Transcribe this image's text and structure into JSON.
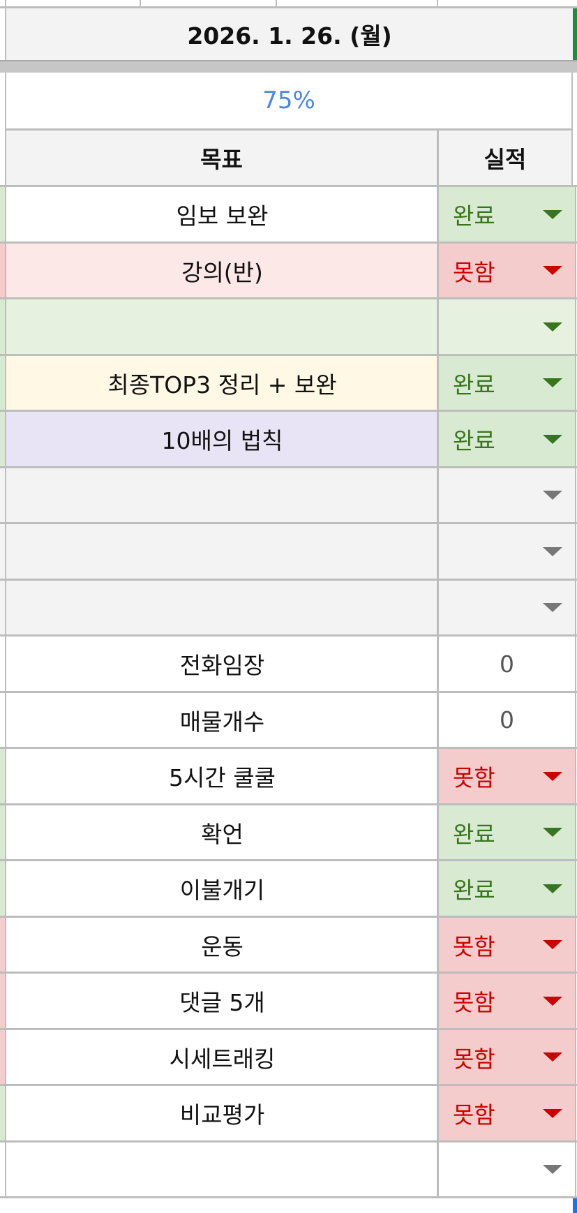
{
  "date_header": "2026. 1. 26. (월)",
  "progress_percent": "75%",
  "columns": {
    "goal": "목표",
    "result": "실적"
  },
  "colors": {
    "done_bg": "#d9ead3",
    "done_text": "#38761d",
    "fail_bg": "#f4cccc",
    "fail_text": "#cc0000",
    "progress_text": "#4a86e8"
  },
  "rows": [
    {
      "goal": "임보 보완",
      "result": "완료",
      "type": "done",
      "bg": "#ffffff",
      "strip": "#d9ead3"
    },
    {
      "goal": "강의(반)",
      "result": "못함",
      "type": "fail",
      "bg": "#fce8e6",
      "strip": "#f4cccc"
    },
    {
      "goal": "",
      "result": "",
      "type": "done-empty",
      "bg": "#e6f2df",
      "strip": "#d9ead3"
    },
    {
      "goal": "최종TOP3 정리 + 보완",
      "result": "완료",
      "type": "done",
      "bg": "#fef8e4",
      "strip": "#d9ead3"
    },
    {
      "goal": "10배의 법칙",
      "result": "완료",
      "type": "done",
      "bg": "#e8e4f6",
      "strip": "#d9ead3"
    },
    {
      "goal": "",
      "result": "",
      "type": "empty",
      "bg": "#f3f3f3",
      "strip": "#f3f3f3"
    },
    {
      "goal": "",
      "result": "",
      "type": "empty",
      "bg": "#f3f3f3",
      "strip": "#f3f3f3"
    },
    {
      "goal": "",
      "result": "",
      "type": "empty",
      "bg": "#f3f3f3",
      "strip": "#f3f3f3"
    },
    {
      "goal": "전화임장",
      "result": "0",
      "type": "number",
      "bg": "#ffffff",
      "strip": "#ffffff"
    },
    {
      "goal": "매물개수",
      "result": "0",
      "type": "number",
      "bg": "#ffffff",
      "strip": "#ffffff"
    },
    {
      "goal": "5시간 쿨쿨",
      "result": "못함",
      "type": "fail",
      "bg": "#ffffff",
      "strip": "#d9ead3"
    },
    {
      "goal": "확언",
      "result": "완료",
      "type": "done",
      "bg": "#ffffff",
      "strip": "#d9ead3"
    },
    {
      "goal": "이불개기",
      "result": "완료",
      "type": "done",
      "bg": "#ffffff",
      "strip": "#d9ead3"
    },
    {
      "goal": "운동",
      "result": "못함",
      "type": "fail",
      "bg": "#ffffff",
      "strip": "#f4cccc"
    },
    {
      "goal": "댓글 5개",
      "result": "못함",
      "type": "fail",
      "bg": "#ffffff",
      "strip": "#f4cccc"
    },
    {
      "goal": "시세트래킹",
      "result": "못함",
      "type": "fail",
      "bg": "#ffffff",
      "strip": "#f4cccc"
    },
    {
      "goal": "비교평가",
      "result": "못함",
      "type": "fail",
      "bg": "#ffffff",
      "strip": "#d9ead3"
    },
    {
      "goal": "",
      "result": "",
      "type": "empty",
      "bg": "#ffffff",
      "strip": "#ffffff"
    }
  ]
}
